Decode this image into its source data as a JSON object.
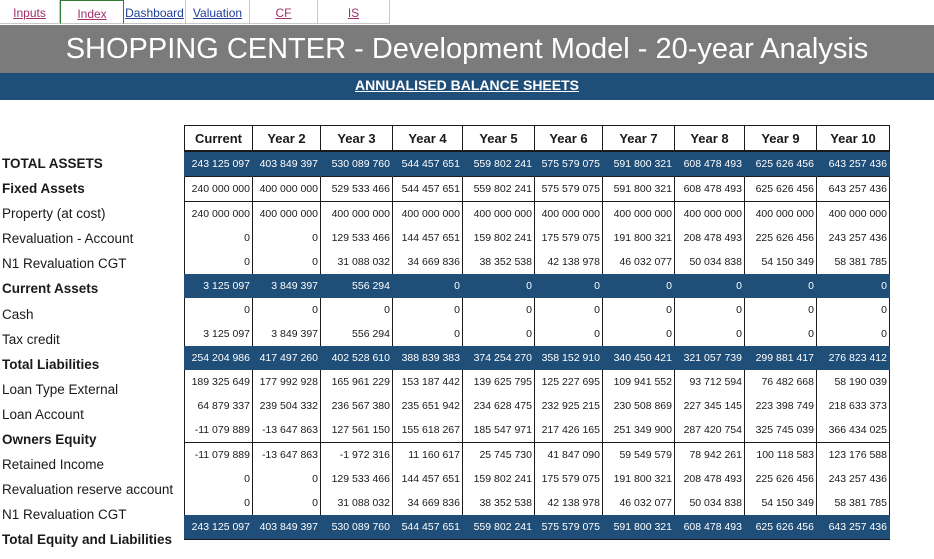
{
  "tabs": [
    "Inputs",
    "Index",
    "Dashboard",
    "Valuation",
    "CF",
    "IS"
  ],
  "title": "SHOPPING CENTER - Development Model - 20-year Analysis",
  "subtitle": "ANNUALISED BALANCE SHEETS",
  "columns": [
    "Current",
    "Year 2",
    "Year 3",
    "Year 4",
    "Year 5",
    "Year 6",
    "Year 7",
    "Year 8",
    "Year 9",
    "Year 10"
  ],
  "rows": [
    {
      "label": "TOTAL ASSETS",
      "values": [
        "243 125 097",
        "403 849 397",
        "530 089 760",
        "544 457 651",
        "559 802 241",
        "575 579 075",
        "591 800 321",
        "608 478 493",
        "625 626 456",
        "643 257 436"
      ]
    },
    {
      "label": "Fixed Assets",
      "values": [
        "240 000 000",
        "400 000 000",
        "529 533 466",
        "544 457 651",
        "559 802 241",
        "575 579 075",
        "591 800 321",
        "608 478 493",
        "625 626 456",
        "643 257 436"
      ]
    },
    {
      "label": "Property (at cost)",
      "values": [
        "240 000 000",
        "400 000 000",
        "400 000 000",
        "400 000 000",
        "400 000 000",
        "400 000 000",
        "400 000 000",
        "400 000 000",
        "400 000 000",
        "400 000 000"
      ]
    },
    {
      "label": "Revaluation - Account",
      "values": [
        "0",
        "0",
        "129 533 466",
        "144 457 651",
        "159 802 241",
        "175 579 075",
        "191 800 321",
        "208 478 493",
        "225 626 456",
        "243 257 436"
      ]
    },
    {
      "label": "N1 Revaluation CGT",
      "values": [
        "0",
        "0",
        "31 088 032",
        "34 669 836",
        "38 352 538",
        "42 138 978",
        "46 032 077",
        "50 034 838",
        "54 150 349",
        "58 381 785"
      ]
    },
    {
      "label": "Current Assets",
      "values": [
        "3 125 097",
        "3 849 397",
        "556 294",
        "0",
        "0",
        "0",
        "0",
        "0",
        "0",
        "0"
      ]
    },
    {
      "label": "Cash",
      "values": [
        "0",
        "0",
        "0",
        "0",
        "0",
        "0",
        "0",
        "0",
        "0",
        "0"
      ]
    },
    {
      "label": "Tax credit",
      "values": [
        "3 125 097",
        "3 849 397",
        "556 294",
        "0",
        "0",
        "0",
        "0",
        "0",
        "0",
        "0"
      ]
    },
    {
      "label": "Total Liabilities",
      "values": [
        "254 204 986",
        "417 497 260",
        "402 528 610",
        "388 839 383",
        "374 254 270",
        "358 152 910",
        "340 450 421",
        "321 057 739",
        "299 881 417",
        "276 823 412"
      ]
    },
    {
      "label": "Loan Type External",
      "values": [
        "189 325 649",
        "177 992 928",
        "165 961 229",
        "153 187 442",
        "139 625 795",
        "125 227 695",
        "109 941 552",
        "93 712 594",
        "76 482 668",
        "58 190 039"
      ]
    },
    {
      "label": "Loan Account",
      "values": [
        "64 879 337",
        "239 504 332",
        "236 567 380",
        "235 651 942",
        "234 628 475",
        "232 925 215",
        "230 508 869",
        "227 345 145",
        "223 398 749",
        "218 633 373"
      ]
    },
    {
      "label": "Owners Equity",
      "values": [
        "-11 079 889",
        "-13 647 863",
        "127 561 150",
        "155 618 267",
        "185 547 971",
        "217 426 165",
        "251 349 900",
        "287 420 754",
        "325 745 039",
        "366 434 025"
      ]
    },
    {
      "label": "Retained Income",
      "values": [
        "-11 079 889",
        "-13 647 863",
        "-1 972 316",
        "11 160 617",
        "25 745 730",
        "41 847 090",
        "59 549 579",
        "78 942 261",
        "100 118 583",
        "123 176 588"
      ]
    },
    {
      "label": "Revaluation reserve account",
      "values": [
        "0",
        "0",
        "129 533 466",
        "144 457 651",
        "159 802 241",
        "175 579 075",
        "191 800 321",
        "208 478 493",
        "225 626 456",
        "243 257 436"
      ]
    },
    {
      "label": "N1 Revaluation CGT",
      "values": [
        "0",
        "0",
        "31 088 032",
        "34 669 836",
        "38 352 538",
        "42 138 978",
        "46 032 077",
        "50 034 838",
        "54 150 349",
        "58 381 785"
      ]
    },
    {
      "label": "Total Equity and Liabilities",
      "values": [
        "243 125 097",
        "403 849 397",
        "530 089 760",
        "544 457 651",
        "559 802 241",
        "575 579 075",
        "591 800 321",
        "608 478 493",
        "625 626 456",
        "643 257 436"
      ]
    }
  ]
}
